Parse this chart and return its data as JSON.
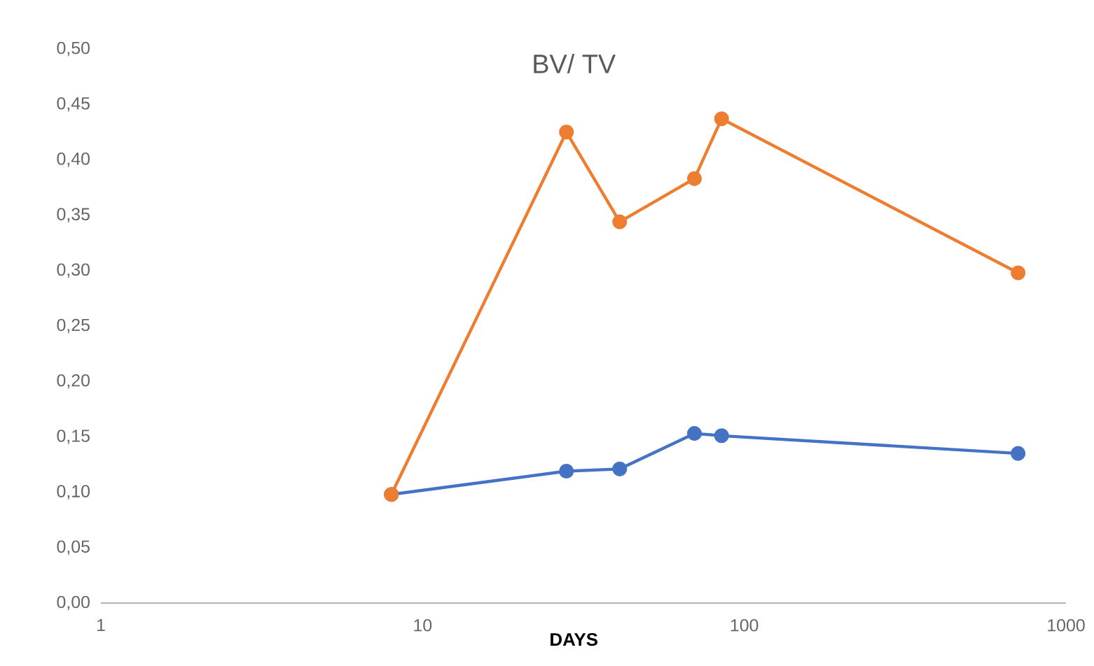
{
  "chart_data": {
    "type": "line",
    "title": "BV/ TV",
    "xlabel": "DAYS",
    "log": "x",
    "x": [
      8,
      28,
      41,
      70,
      85,
      710
    ],
    "series": [
      {
        "color": "#4472c4",
        "values": [
          0.098,
          0.119,
          0.121,
          0.153,
          0.151,
          0.135
        ]
      },
      {
        "color": "#ed7d31",
        "values": [
          0.098,
          0.425,
          0.344,
          0.383,
          0.437,
          0.298
        ]
      }
    ],
    "xlim": [
      1,
      1000
    ],
    "xticks": [
      1,
      10,
      100,
      1000
    ],
    "ylim": [
      0,
      0.5
    ],
    "yticks": [
      {
        "value": 0,
        "label": "0,00"
      },
      {
        "value": 0.05,
        "label": "0,05"
      },
      {
        "value": 0.1,
        "label": "0,10"
      },
      {
        "value": 0.15,
        "label": "0,15"
      },
      {
        "value": 0.2,
        "label": "0,20"
      },
      {
        "value": 0.25,
        "label": "0,25"
      },
      {
        "value": 0.3,
        "label": "0,30"
      },
      {
        "value": 0.35,
        "label": "0,35"
      },
      {
        "value": 0.4,
        "label": "0,40"
      },
      {
        "value": 0.45,
        "label": "0,45"
      },
      {
        "value": 0.5,
        "label": "0,50"
      }
    ],
    "grid": false,
    "marker": "circle",
    "line_style": "solid"
  }
}
